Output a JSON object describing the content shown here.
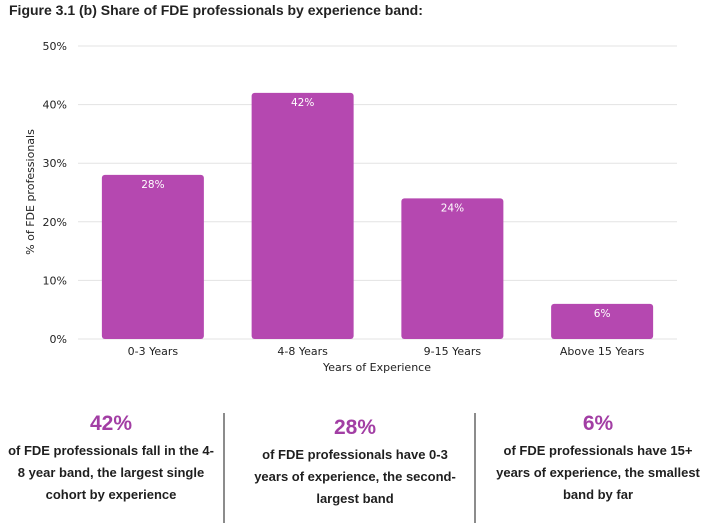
{
  "figure_title": "Figure 3.1 (b) Share of FDE professionals by experience band:",
  "chart_data": {
    "type": "bar",
    "title": "Figure 3.1 (b) Share of FDE professionals by experience band:",
    "xlabel": "Years of Experience",
    "ylabel": "% of FDE professionals",
    "categories": [
      "0-3 Years",
      "4-8 Years",
      "9-15 Years",
      "Above 15 Years"
    ],
    "values": [
      28,
      42,
      24,
      6
    ],
    "data_labels": [
      "28%",
      "42%",
      "24%",
      "6%"
    ],
    "ylim": [
      0,
      50
    ],
    "yticks": [
      0,
      10,
      20,
      30,
      40,
      50
    ],
    "ytick_labels": [
      "0%",
      "10%",
      "20%",
      "30%",
      "40%",
      "50%"
    ],
    "grid": true,
    "bar_color": "#b548b0"
  },
  "stats": [
    {
      "value": "42%",
      "text": "of FDE professionals fall in the 4-8 year band, the largest single cohort by experience"
    },
    {
      "value": "28%",
      "text": "of FDE professionals have 0-3 years of experience, the second-largest band"
    },
    {
      "value": "6%",
      "text": "of FDE professionals have 15+ years of experience, the smallest band by far"
    }
  ],
  "colors": {
    "accent": "#a23ea4",
    "bar": "#b548b0",
    "grid": "#e3e3e3"
  }
}
